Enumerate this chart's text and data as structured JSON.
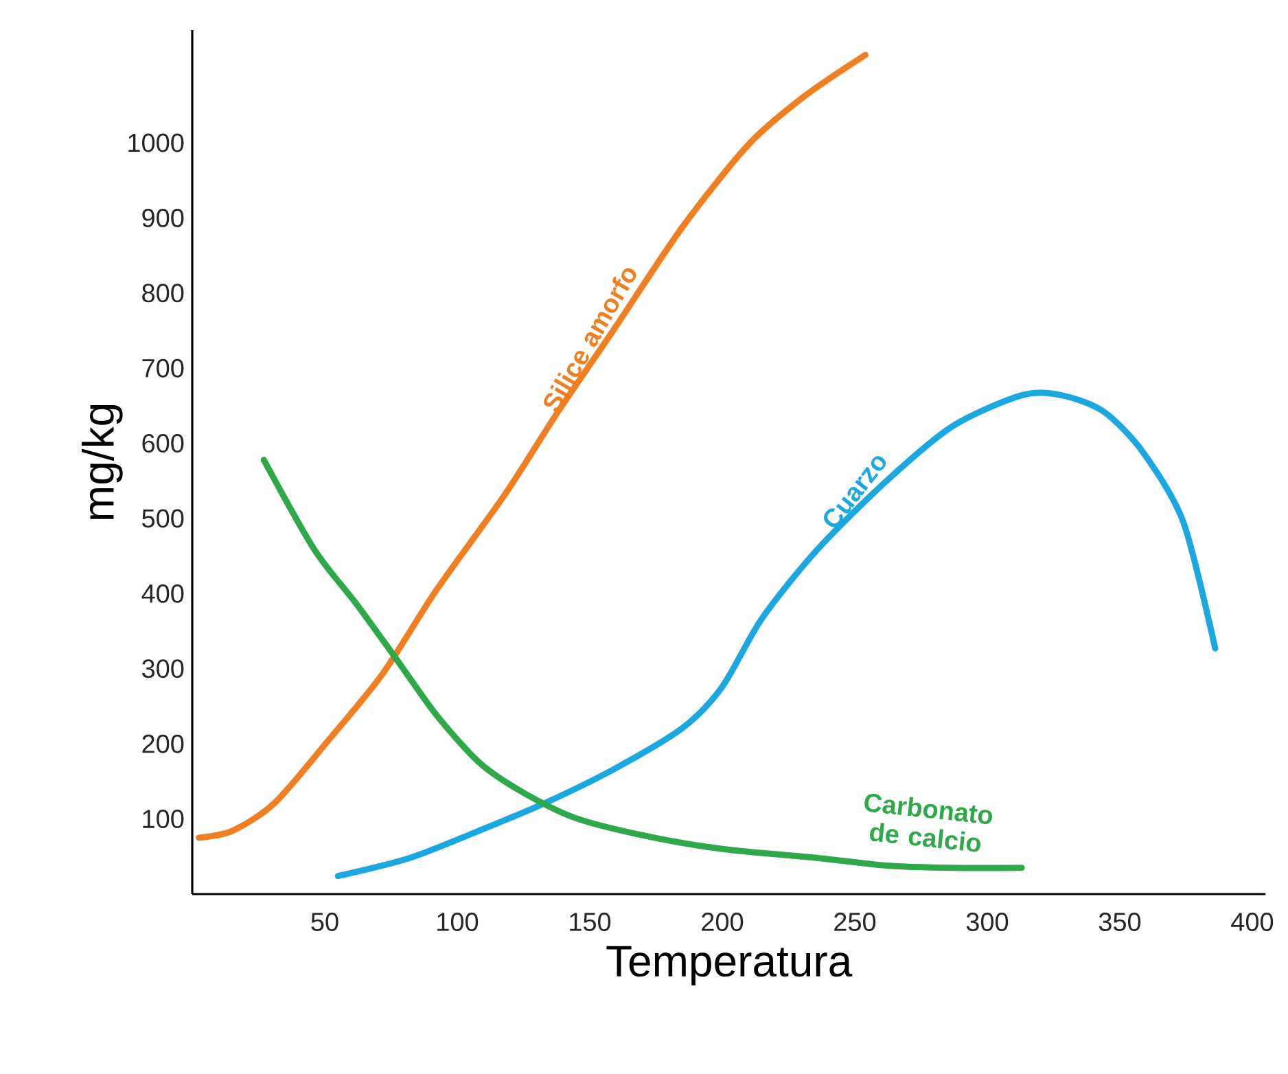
{
  "chart_data": {
    "type": "line",
    "xlabel": "Temperatura",
    "ylabel": "mg/kg",
    "xlim": [
      0,
      405
    ],
    "ylim": [
      0,
      1150
    ],
    "xticks": [
      50,
      100,
      150,
      200,
      250,
      300,
      350,
      400
    ],
    "yticks": [
      100,
      200,
      300,
      400,
      500,
      600,
      700,
      800,
      900,
      1000
    ],
    "grid": false,
    "legend": false,
    "marker": "none",
    "line_style": "solid",
    "series": [
      {
        "name": "Silice amorfo",
        "color": "#f07f22",
        "x": [
          2.5,
          15,
          31,
          51,
          72,
          92,
          118,
          138,
          159,
          185,
          210,
          231,
          254
        ],
        "values": [
          75,
          84,
          121,
          203,
          294,
          404,
          532,
          642,
          751,
          888,
          998,
          1062,
          1117
        ]
      },
      {
        "name": "Cuarzo",
        "color": "#1ba8e0",
        "x": [
          55,
          82,
          108,
          133,
          159,
          185,
          200,
          215,
          236,
          262,
          287,
          313,
          328,
          344,
          359,
          374,
          386
        ],
        "values": [
          24,
          48,
          84,
          121,
          166,
          221,
          276,
          367,
          459,
          550,
          623,
          664,
          664,
          642,
          587,
          495,
          327
        ]
      },
      {
        "name": "Carbonato de calcio",
        "color": "#2fa84a",
        "x": [
          27,
          46,
          62,
          77,
          92,
          108,
          123,
          144,
          169,
          200,
          236,
          262,
          287,
          313
        ],
        "values": [
          578,
          459,
          386,
          313,
          239,
          176,
          139,
          102,
          79,
          60,
          48,
          38,
          35,
          35
        ]
      }
    ]
  }
}
